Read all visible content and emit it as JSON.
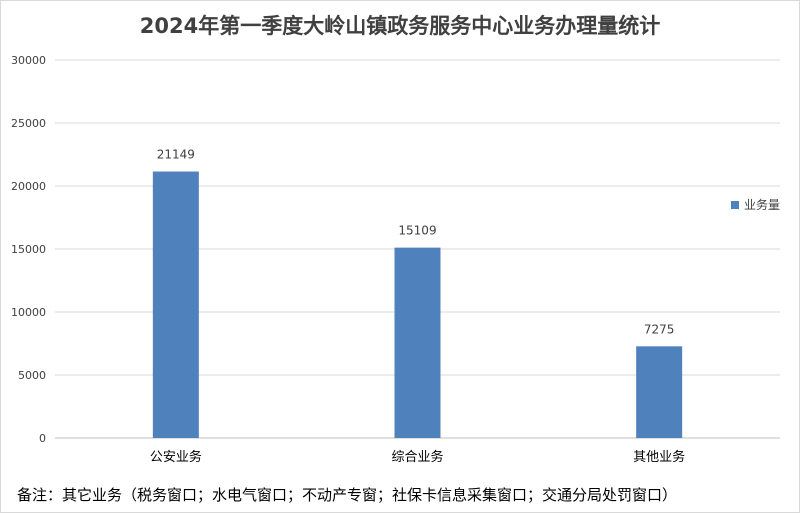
{
  "chart_data": {
    "type": "bar",
    "title": "2024年第一季度大岭山镇政务服务中心业务办理量统计",
    "categories": [
      "公安业务",
      "综合业务",
      "其他业务"
    ],
    "series": [
      {
        "name": "业务量",
        "values": [
          21149,
          15109,
          7275
        ]
      }
    ],
    "data_labels": [
      "21149",
      "15109",
      "7275"
    ],
    "y_ticks": [
      "0",
      "5000",
      "10000",
      "15000",
      "20000",
      "25000",
      "30000"
    ],
    "ylim": [
      0,
      30000
    ],
    "grid": true,
    "legend": "right",
    "colors": {
      "bar": "#4f81bd",
      "grid": "#d9d9d9",
      "axis": "#bfbfbf"
    }
  },
  "note": "备注：其它业务（税务窗口；水电气窗口；不动产专窗；社保卡信息采集窗口；交通分局处罚窗口）"
}
